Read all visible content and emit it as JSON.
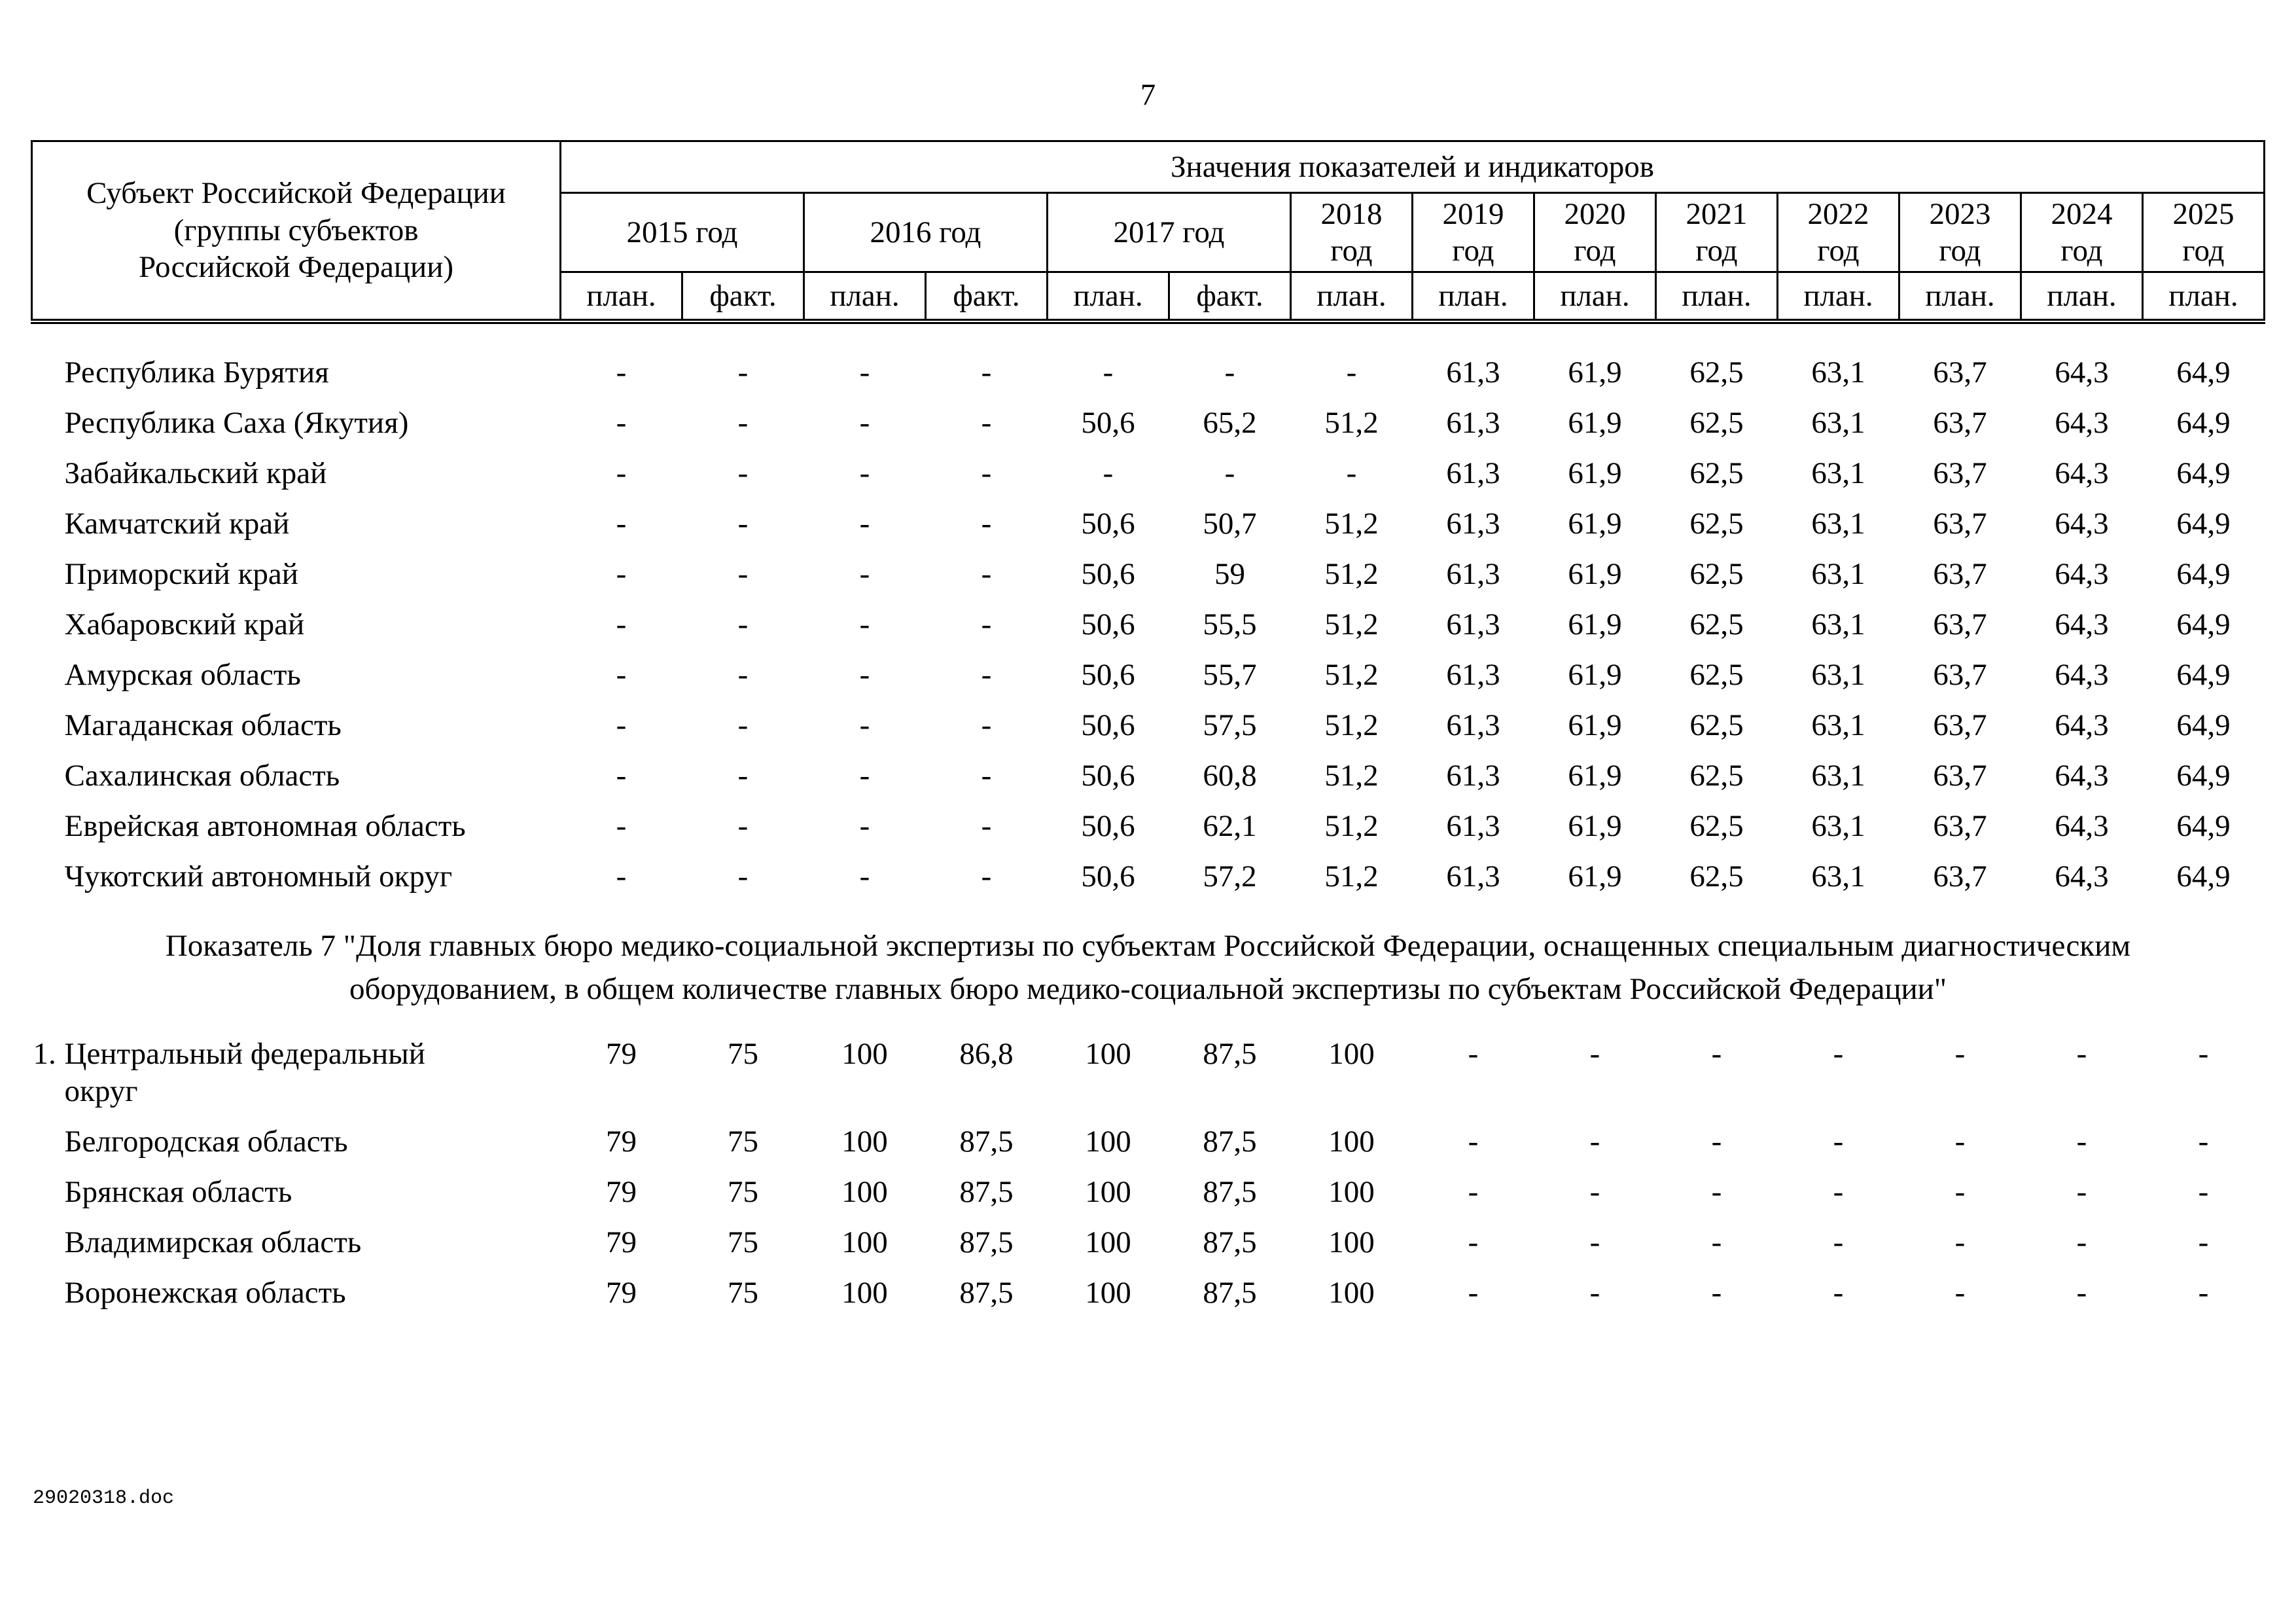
{
  "page": {
    "number": "7",
    "footer": "29020318.doc"
  },
  "table": {
    "corner_header_lines": [
      "Субъект Российской Федерации",
      "(группы субъектов",
      "Российской Федерации)"
    ],
    "values_header": "Значения показателей и индикаторов",
    "year_groups": [
      {
        "label": "2015 год",
        "span": 2
      },
      {
        "label": "2016 год",
        "span": 2
      },
      {
        "label": "2017 год",
        "span": 2
      },
      {
        "label": "2018 год",
        "span": 1
      },
      {
        "label": "2019 год",
        "span": 1
      },
      {
        "label": "2020 год",
        "span": 1
      },
      {
        "label": "2021 год",
        "span": 1
      },
      {
        "label": "2022 год",
        "span": 1
      },
      {
        "label": "2023 год",
        "span": 1
      },
      {
        "label": "2024 год",
        "span": 1
      },
      {
        "label": "2025 год",
        "span": 1
      }
    ],
    "subheaders": [
      "план.",
      "факт.",
      "план.",
      "факт.",
      "план.",
      "факт.",
      "план.",
      "план.",
      "план.",
      "план.",
      "план.",
      "план.",
      "план.",
      "план."
    ],
    "section1_rows": [
      {
        "num": "",
        "name": "Республика Бурятия",
        "values": [
          "-",
          "-",
          "-",
          "-",
          "-",
          "-",
          "-",
          "61,3",
          "61,9",
          "62,5",
          "63,1",
          "63,7",
          "64,3",
          "64,9"
        ]
      },
      {
        "num": "",
        "name": "Республика Саха (Якутия)",
        "values": [
          "-",
          "-",
          "-",
          "-",
          "50,6",
          "65,2",
          "51,2",
          "61,3",
          "61,9",
          "62,5",
          "63,1",
          "63,7",
          "64,3",
          "64,9"
        ]
      },
      {
        "num": "",
        "name": "Забайкальский край",
        "values": [
          "-",
          "-",
          "-",
          "-",
          "-",
          "-",
          "-",
          "61,3",
          "61,9",
          "62,5",
          "63,1",
          "63,7",
          "64,3",
          "64,9"
        ]
      },
      {
        "num": "",
        "name": "Камчатский край",
        "values": [
          "-",
          "-",
          "-",
          "-",
          "50,6",
          "50,7",
          "51,2",
          "61,3",
          "61,9",
          "62,5",
          "63,1",
          "63,7",
          "64,3",
          "64,9"
        ]
      },
      {
        "num": "",
        "name": "Приморский край",
        "values": [
          "-",
          "-",
          "-",
          "-",
          "50,6",
          "59",
          "51,2",
          "61,3",
          "61,9",
          "62,5",
          "63,1",
          "63,7",
          "64,3",
          "64,9"
        ]
      },
      {
        "num": "",
        "name": "Хабаровский край",
        "values": [
          "-",
          "-",
          "-",
          "-",
          "50,6",
          "55,5",
          "51,2",
          "61,3",
          "61,9",
          "62,5",
          "63,1",
          "63,7",
          "64,3",
          "64,9"
        ]
      },
      {
        "num": "",
        "name": "Амурская область",
        "values": [
          "-",
          "-",
          "-",
          "-",
          "50,6",
          "55,7",
          "51,2",
          "61,3",
          "61,9",
          "62,5",
          "63,1",
          "63,7",
          "64,3",
          "64,9"
        ]
      },
      {
        "num": "",
        "name": "Магаданская область",
        "values": [
          "-",
          "-",
          "-",
          "-",
          "50,6",
          "57,5",
          "51,2",
          "61,3",
          "61,9",
          "62,5",
          "63,1",
          "63,7",
          "64,3",
          "64,9"
        ]
      },
      {
        "num": "",
        "name": "Сахалинская область",
        "values": [
          "-",
          "-",
          "-",
          "-",
          "50,6",
          "60,8",
          "51,2",
          "61,3",
          "61,9",
          "62,5",
          "63,1",
          "63,7",
          "64,3",
          "64,9"
        ]
      },
      {
        "num": "",
        "name": "Еврейская автономная область",
        "values": [
          "-",
          "-",
          "-",
          "-",
          "50,6",
          "62,1",
          "51,2",
          "61,3",
          "61,9",
          "62,5",
          "63,1",
          "63,7",
          "64,3",
          "64,9"
        ]
      },
      {
        "num": "",
        "name": "Чукотский автономный округ",
        "values": [
          "-",
          "-",
          "-",
          "-",
          "50,6",
          "57,2",
          "51,2",
          "61,3",
          "61,9",
          "62,5",
          "63,1",
          "63,7",
          "64,3",
          "64,9"
        ]
      }
    ],
    "note": "Показатель 7 \"Доля главных бюро медико-социальной экспертизы по субъектам Российской Федерации, оснащенных специальным диагностическим оборудованием, в общем количестве главных бюро медико-социальной экспертизы по субъектам Российской Федерации\"",
    "section2_rows": [
      {
        "num": "1.",
        "name": "Центральный федеральный округ",
        "values": [
          "79",
          "75",
          "100",
          "86,8",
          "100",
          "87,5",
          "100",
          "-",
          "-",
          "-",
          "-",
          "-",
          "-",
          "-"
        ]
      },
      {
        "num": "",
        "name": "Белгородская область",
        "values": [
          "79",
          "75",
          "100",
          "87,5",
          "100",
          "87,5",
          "100",
          "-",
          "-",
          "-",
          "-",
          "-",
          "-",
          "-"
        ]
      },
      {
        "num": "",
        "name": "Брянская область",
        "values": [
          "79",
          "75",
          "100",
          "87,5",
          "100",
          "87,5",
          "100",
          "-",
          "-",
          "-",
          "-",
          "-",
          "-",
          "-"
        ]
      },
      {
        "num": "",
        "name": "Владимирская область",
        "values": [
          "79",
          "75",
          "100",
          "87,5",
          "100",
          "87,5",
          "100",
          "-",
          "-",
          "-",
          "-",
          "-",
          "-",
          "-"
        ]
      },
      {
        "num": "",
        "name": "Воронежская область",
        "values": [
          "79",
          "75",
          "100",
          "87,5",
          "100",
          "87,5",
          "100",
          "-",
          "-",
          "-",
          "-",
          "-",
          "-",
          "-"
        ]
      }
    ]
  }
}
